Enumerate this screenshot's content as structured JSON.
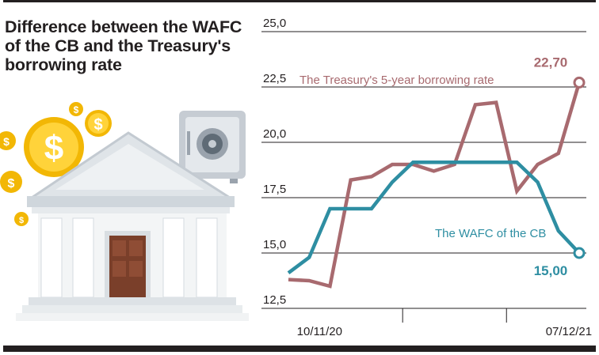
{
  "title": "Difference between the WAFC of the CB and the Treasury's borrowing rate",
  "colors": {
    "wafc": "#2e8ea2",
    "treasury": "#a86a6f",
    "grid": "#231f20",
    "text": "#231f20"
  },
  "icons": [
    "bank-building-icon",
    "safe-icon",
    "dollar-coin-icon"
  ],
  "chart_data": {
    "type": "line",
    "title": "Difference between the WAFC of the CB and the Treasury's borrowing rate",
    "xlabel": "",
    "ylabel": "",
    "ylim": [
      12.5,
      25.0
    ],
    "yticks": [
      "25,0",
      "22,5",
      "20,0",
      "17,5",
      "15,0",
      "12,5"
    ],
    "ytick_values": [
      25.0,
      22.5,
      20.0,
      17.5,
      15.0,
      12.5
    ],
    "xticks": [
      {
        "label": "10/11/20",
        "index": 1.5
      },
      {
        "label": "07/12/21",
        "index": 13.5
      }
    ],
    "grid": true,
    "series": [
      {
        "name": "The Treasury's 5-year borrowing rate",
        "end_label": "22,70",
        "values": [
          13.8,
          13.75,
          13.5,
          18.3,
          18.45,
          19.0,
          19.0,
          18.7,
          19.0,
          21.7,
          21.8,
          17.8,
          19.0,
          19.5,
          22.7
        ]
      },
      {
        "name": "The WAFC of the CB",
        "end_label": "15,00",
        "values": [
          14.1,
          14.8,
          17.0,
          17.0,
          17.0,
          18.2,
          19.1,
          19.1,
          19.1,
          19.1,
          19.1,
          19.1,
          18.2,
          16.0,
          15.0
        ]
      }
    ]
  }
}
